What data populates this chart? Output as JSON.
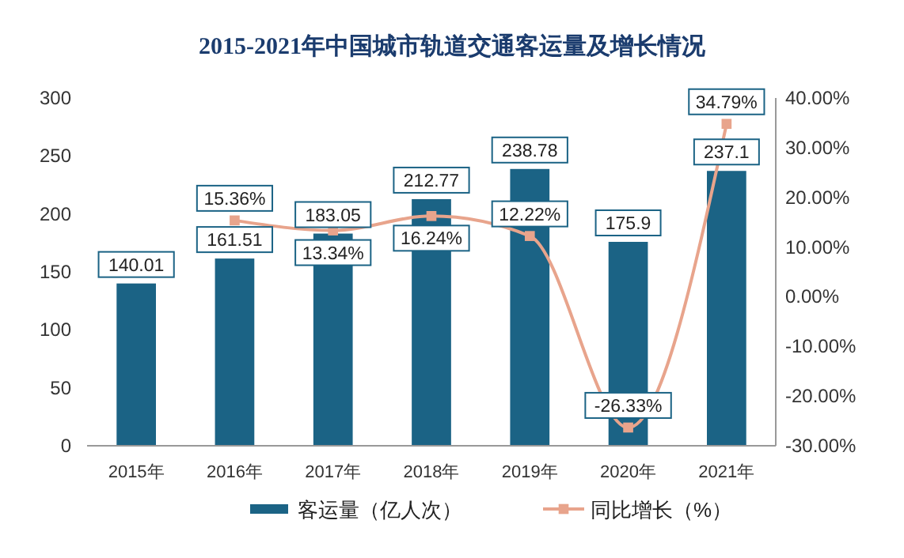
{
  "chart_data": {
    "type": "bar",
    "title": "2015-2021年中国城市轨道交通客运量及增长情况",
    "categories": [
      "2015年",
      "2016年",
      "2017年",
      "2018年",
      "2019年",
      "2020年",
      "2021年"
    ],
    "series": [
      {
        "name": "客运量（亿人次）",
        "color": "#1b6385",
        "values": [
          140.01,
          161.51,
          183.05,
          212.77,
          238.78,
          175.9,
          237.1
        ],
        "value_labels": [
          "140.01",
          "161.51",
          "183.05",
          "212.77",
          "238.78",
          "175.9",
          "237.1"
        ]
      },
      {
        "name": "同比增长（%）",
        "type": "line",
        "axis": "y2",
        "color": "#e8a48c",
        "marker": "square",
        "values": [
          null,
          15.36,
          13.34,
          16.24,
          12.22,
          -26.33,
          34.79
        ],
        "value_labels": [
          null,
          "15.36%",
          "13.34%",
          "16.24%",
          "12.22%",
          "-26.33%",
          "34.79%"
        ]
      }
    ],
    "ylim": [
      0,
      300
    ],
    "yticks": [
      0,
      50,
      100,
      150,
      200,
      250,
      300
    ],
    "y2lim": [
      -30,
      40
    ],
    "y2ticks": [
      {
        "value": -30,
        "label": "-30.00%"
      },
      {
        "value": -20,
        "label": "-20.00%"
      },
      {
        "value": -10,
        "label": "-10.00%"
      },
      {
        "value": 0,
        "label": "0.00%"
      },
      {
        "value": 10,
        "label": "10.00%"
      },
      {
        "value": 20,
        "label": "20.00%"
      },
      {
        "value": 30,
        "label": "30.00%"
      },
      {
        "value": 40,
        "label": "40.00%"
      }
    ],
    "grid": false,
    "legend": "bottom"
  }
}
